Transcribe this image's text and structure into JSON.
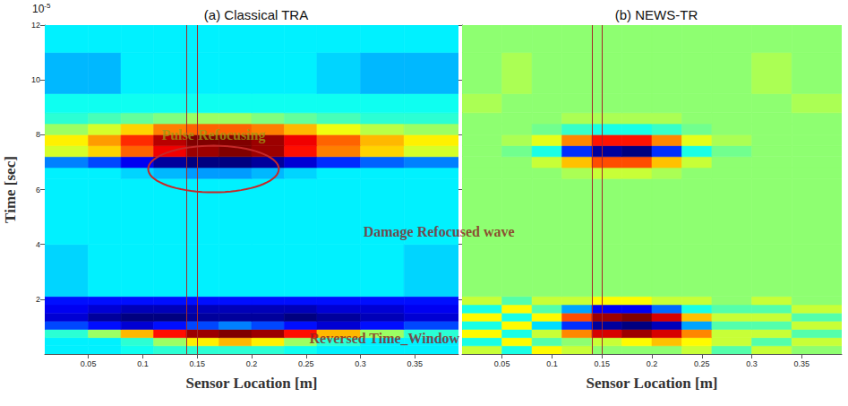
{
  "chart_data": [
    {
      "type": "heatmap",
      "title": "(a) Classical TRA",
      "x_label": "Sensor Location [m]",
      "y_label": "Time [sec]",
      "y_scale": {
        "base": "10",
        "exponent": "-5"
      },
      "xlim": [
        0.01,
        0.39
      ],
      "xticks": [
        0.05,
        0.1,
        0.15,
        0.2,
        0.25,
        0.3,
        0.35
      ],
      "ylim": [
        0,
        12
      ],
      "yticks": [
        2,
        4,
        6,
        8,
        10,
        12
      ],
      "x_edges": [
        0.01,
        0.05,
        0.08,
        0.11,
        0.14,
        0.17,
        0.2,
        0.23,
        0.26,
        0.3,
        0.34,
        0.39
      ],
      "y_edges": [
        0,
        0.3,
        0.6,
        0.9,
        1.2,
        1.5,
        1.8,
        2.1,
        4,
        6.4,
        6.8,
        7.2,
        7.6,
        8.0,
        8.4,
        8.8,
        9.5,
        11,
        12
      ],
      "cells": [
        [
          -0.3,
          -0.3,
          -0.25,
          -0.2,
          -0.2,
          -0.2,
          -0.2,
          -0.25,
          -0.3,
          -0.3,
          -0.3
        ],
        [
          -0.3,
          -0.3,
          -0.2,
          0.0,
          0.2,
          0.3,
          0.2,
          0.0,
          -0.2,
          -0.3,
          -0.3
        ],
        [
          -0.2,
          0.0,
          0.3,
          0.6,
          0.8,
          0.85,
          0.8,
          0.6,
          0.3,
          0.0,
          -0.2
        ],
        [
          -0.6,
          -0.7,
          -0.8,
          -0.7,
          -0.6,
          -0.5,
          -0.6,
          -0.7,
          -0.8,
          -0.7,
          -0.6
        ],
        [
          -0.8,
          -0.9,
          -0.95,
          -0.95,
          -0.9,
          -0.9,
          -0.9,
          -0.95,
          -0.9,
          -0.85,
          -0.8
        ],
        [
          -0.75,
          -0.8,
          -0.85,
          -0.85,
          -0.85,
          -0.85,
          -0.85,
          -0.85,
          -0.8,
          -0.8,
          -0.75
        ],
        [
          -0.7,
          -0.7,
          -0.7,
          -0.7,
          -0.7,
          -0.7,
          -0.7,
          -0.7,
          -0.7,
          -0.7,
          -0.7
        ],
        [
          -0.35,
          -0.3,
          -0.3,
          -0.3,
          -0.3,
          -0.3,
          -0.3,
          -0.3,
          -0.3,
          -0.3,
          -0.35
        ],
        [
          -0.3,
          -0.3,
          -0.3,
          -0.3,
          -0.3,
          -0.3,
          -0.3,
          -0.3,
          -0.3,
          -0.3,
          -0.3
        ],
        [
          -0.3,
          -0.3,
          -0.35,
          -0.4,
          -0.45,
          -0.45,
          -0.4,
          -0.35,
          -0.3,
          -0.3,
          -0.3
        ],
        [
          -0.5,
          -0.6,
          -0.75,
          -0.9,
          -0.95,
          -0.95,
          -0.9,
          -0.8,
          -0.65,
          -0.55,
          -0.5
        ],
        [
          0.1,
          0.25,
          0.45,
          0.65,
          0.8,
          0.85,
          0.8,
          0.6,
          0.4,
          0.25,
          0.1
        ],
        [
          0.2,
          0.35,
          0.55,
          0.75,
          0.85,
          0.85,
          0.8,
          0.65,
          0.45,
          0.3,
          0.2
        ],
        [
          0.0,
          0.1,
          0.25,
          0.4,
          0.45,
          0.45,
          0.4,
          0.3,
          0.15,
          0.05,
          0.0
        ],
        [
          -0.2,
          -0.15,
          -0.1,
          -0.05,
          0,
          0,
          -0.05,
          -0.1,
          -0.15,
          -0.2,
          -0.2
        ],
        [
          -0.25,
          -0.25,
          -0.25,
          -0.25,
          -0.25,
          -0.25,
          -0.25,
          -0.25,
          -0.25,
          -0.25,
          -0.25
        ],
        [
          -0.4,
          -0.4,
          -0.3,
          -0.3,
          -0.3,
          -0.3,
          -0.3,
          -0.3,
          -0.35,
          -0.4,
          -0.4
        ],
        [
          -0.3,
          -0.3,
          -0.3,
          -0.3,
          -0.3,
          -0.3,
          -0.3,
          -0.3,
          -0.3,
          -0.3,
          -0.3
        ]
      ],
      "reference_lines_x": [
        0.135,
        0.155
      ],
      "circled_region": {
        "x": [
          0.105,
          0.225
        ],
        "y": [
          5.9,
          7.6
        ]
      },
      "annotations": [
        {
          "text": "Pulse Refocusing",
          "x": 0.165,
          "y": 8.0,
          "color": "#9c9c14"
        },
        {
          "text": "Damage Refocused wave",
          "x": 0.372,
          "y": 4.45,
          "color": "#8b2020"
        },
        {
          "text": "Reversed Time_Window",
          "x": 0.322,
          "y": 0.57,
          "color": "#8b2020"
        }
      ]
    },
    {
      "type": "heatmap",
      "title": "(b) NEWS-TR",
      "x_label": "Sensor Location [m]",
      "tick_labels": "x",
      "xlim": [
        0.01,
        0.39
      ],
      "xticks": [
        0.05,
        0.1,
        0.15,
        0.2,
        0.25,
        0.3,
        0.35
      ],
      "ylim": [
        0,
        12
      ],
      "yticks": [
        2,
        4,
        6,
        8,
        10,
        12
      ],
      "x_edges": [
        0.01,
        0.05,
        0.08,
        0.11,
        0.14,
        0.17,
        0.2,
        0.23,
        0.26,
        0.3,
        0.34,
        0.39
      ],
      "y_edges": [
        0,
        0.3,
        0.6,
        0.9,
        1.2,
        1.5,
        1.8,
        2.1,
        4,
        6.4,
        6.8,
        7.2,
        7.6,
        8.0,
        8.4,
        8.8,
        9.5,
        11,
        12
      ],
      "cells": [
        [
          0.1,
          -0.2,
          0.2,
          0.1,
          0.0,
          0.0,
          0.0,
          0.1,
          -0.1,
          0.1,
          0.0
        ],
        [
          -0.2,
          0.2,
          -0.1,
          0.0,
          0.1,
          0.2,
          0.3,
          0.2,
          0.1,
          -0.1,
          0.1
        ],
        [
          0.2,
          -0.2,
          0.1,
          0.4,
          0.7,
          0.8,
          0.7,
          0.4,
          0.1,
          0.1,
          -0.1
        ],
        [
          -0.2,
          0.2,
          -0.3,
          -0.6,
          -0.85,
          -0.9,
          -0.8,
          -0.4,
          -0.1,
          -0.1,
          0.1
        ],
        [
          0.2,
          -0.2,
          0.2,
          0.5,
          0.8,
          0.85,
          0.7,
          0.3,
          0.1,
          0.1,
          -0.1
        ],
        [
          -0.2,
          0.2,
          -0.1,
          -0.4,
          -0.7,
          -0.7,
          -0.5,
          -0.2,
          -0.1,
          -0.1,
          0.1
        ],
        [
          0.1,
          -0.1,
          0.1,
          0.1,
          0.2,
          0.2,
          0.1,
          0.1,
          0.0,
          0.1,
          0.0
        ],
        [
          0,
          0,
          0,
          0,
          0,
          0,
          0,
          0,
          0,
          0,
          0
        ],
        [
          0,
          0,
          0,
          0,
          0,
          0,
          0,
          0,
          0,
          0,
          0
        ],
        [
          0,
          0,
          0,
          0.05,
          0.1,
          0.1,
          0.05,
          0,
          0,
          0,
          0
        ],
        [
          0,
          0,
          0.1,
          0.3,
          0.5,
          0.5,
          0.3,
          0.1,
          0,
          0,
          0
        ],
        [
          0,
          -0.05,
          -0.2,
          -0.6,
          -0.85,
          -0.9,
          -0.6,
          -0.2,
          -0.05,
          0,
          0
        ],
        [
          0,
          0.05,
          0.15,
          0.4,
          0.6,
          0.6,
          0.4,
          0.15,
          0.05,
          0,
          0
        ],
        [
          0,
          0,
          -0.05,
          -0.15,
          -0.2,
          -0.2,
          -0.15,
          -0.05,
          0,
          0,
          0
        ],
        [
          0,
          0,
          0,
          0.05,
          0.05,
          0.05,
          0.05,
          0,
          0,
          0,
          0
        ],
        [
          0.05,
          0,
          0,
          0,
          0,
          0,
          0,
          0,
          0,
          0,
          0.05
        ],
        [
          0,
          0.05,
          0,
          0,
          0,
          0,
          0,
          0,
          0,
          0.05,
          0
        ],
        [
          0,
          0,
          0,
          0,
          0,
          0,
          0,
          0,
          0,
          0,
          0
        ]
      ],
      "reference_lines_x": [
        0.135,
        0.155
      ]
    }
  ]
}
